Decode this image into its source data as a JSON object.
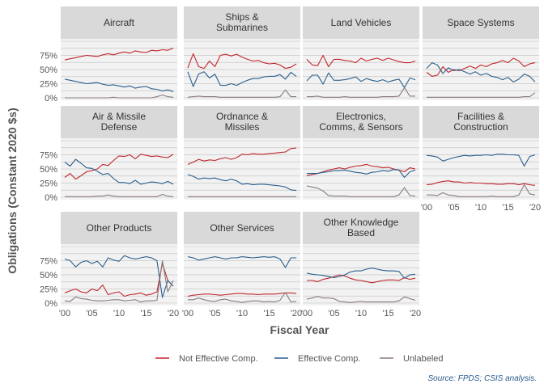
{
  "chart_data": {
    "type": "line",
    "facet_layout": "wrap",
    "ylabel": "Obligations (Constant 2020 $s)",
    "xlabel": "Fiscal Year",
    "source": "Source: FPDS; CSIS analysis.",
    "xlim": [
      2000,
      2020
    ],
    "ylim": [
      0,
      1
    ],
    "y_ticks": [
      0,
      0.25,
      0.5,
      0.75
    ],
    "y_tick_labels": [
      "0%",
      "25%",
      "50%",
      "75%"
    ],
    "x_ticks": [
      2000,
      2005,
      2010,
      2015,
      2020
    ],
    "x_tick_labels": [
      "'00",
      "'05",
      "'10",
      "'15",
      "'20"
    ],
    "grid": true,
    "legend_position": "bottom",
    "series_colors": {
      "Not Effective Comp.": "#c0272d",
      "Effective Comp.": "#2b5f8e",
      "Unlabeled": "#8a7c80"
    },
    "legend": [
      "Not Effective Comp.",
      "Effective Comp.",
      "Unlabeled"
    ],
    "years": [
      2000,
      2001,
      2002,
      2003,
      2004,
      2005,
      2006,
      2007,
      2008,
      2009,
      2010,
      2011,
      2012,
      2013,
      2014,
      2015,
      2016,
      2017,
      2018,
      2019,
      2020
    ],
    "facets": [
      {
        "title": [
          "Aircraft"
        ],
        "series": [
          {
            "name": "Not Effective Comp.",
            "values": [
              0.67,
              0.69,
              0.71,
              0.73,
              0.75,
              0.74,
              0.73,
              0.76,
              0.78,
              0.76,
              0.79,
              0.81,
              0.79,
              0.83,
              0.81,
              0.8,
              0.84,
              0.83,
              0.85,
              0.84,
              0.88
            ]
          },
          {
            "name": "Effective Comp.",
            "values": [
              0.33,
              0.31,
              0.29,
              0.27,
              0.25,
              0.26,
              0.27,
              0.24,
              0.22,
              0.23,
              0.21,
              0.19,
              0.21,
              0.17,
              0.19,
              0.2,
              0.16,
              0.15,
              0.12,
              0.14,
              0.11
            ]
          },
          {
            "name": "Unlabeled",
            "values": [
              0.0,
              0.0,
              0.0,
              0.0,
              0.0,
              0.0,
              0.0,
              0.0,
              0.0,
              0.01,
              0.0,
              0.0,
              0.0,
              0.0,
              0.0,
              0.0,
              0.0,
              0.02,
              0.05,
              0.02,
              0.01
            ]
          }
        ]
      },
      {
        "title": [
          "Ships &",
          "Submarines"
        ],
        "series": [
          {
            "name": "Not Effective Comp.",
            "values": [
              0.53,
              0.78,
              0.55,
              0.52,
              0.65,
              0.55,
              0.75,
              0.77,
              0.74,
              0.77,
              0.72,
              0.68,
              0.65,
              0.66,
              0.62,
              0.6,
              0.61,
              0.58,
              0.52,
              0.54,
              0.6
            ]
          },
          {
            "name": "Effective Comp.",
            "values": [
              0.46,
              0.2,
              0.42,
              0.46,
              0.35,
              0.42,
              0.22,
              0.22,
              0.25,
              0.22,
              0.27,
              0.31,
              0.34,
              0.34,
              0.37,
              0.38,
              0.38,
              0.41,
              0.33,
              0.45,
              0.38
            ]
          },
          {
            "name": "Unlabeled",
            "values": [
              0.01,
              0.02,
              0.03,
              0.02,
              0.02,
              0.02,
              0.01,
              0.01,
              0.01,
              0.01,
              0.01,
              0.01,
              0.01,
              0.01,
              0.01,
              0.01,
              0.01,
              0.02,
              0.14,
              0.02,
              0.02
            ]
          }
        ]
      },
      {
        "title": [
          "Land Vehicles"
        ],
        "series": [
          {
            "name": "Not Effective Comp.",
            "values": [
              0.68,
              0.58,
              0.57,
              0.75,
              0.55,
              0.68,
              0.68,
              0.66,
              0.65,
              0.62,
              0.7,
              0.65,
              0.68,
              0.7,
              0.66,
              0.7,
              0.67,
              0.64,
              0.62,
              0.62,
              0.65
            ]
          },
          {
            "name": "Effective Comp.",
            "values": [
              0.3,
              0.4,
              0.4,
              0.24,
              0.44,
              0.31,
              0.31,
              0.32,
              0.34,
              0.37,
              0.29,
              0.34,
              0.31,
              0.29,
              0.32,
              0.28,
              0.31,
              0.33,
              0.18,
              0.35,
              0.32
            ]
          },
          {
            "name": "Unlabeled",
            "values": [
              0.02,
              0.02,
              0.03,
              0.01,
              0.01,
              0.01,
              0.01,
              0.02,
              0.01,
              0.01,
              0.01,
              0.01,
              0.01,
              0.01,
              0.02,
              0.02,
              0.02,
              0.03,
              0.18,
              0.03,
              0.03
            ]
          }
        ]
      },
      {
        "title": [
          "Space Systems"
        ],
        "series": [
          {
            "name": "Not Effective Comp.",
            "values": [
              0.45,
              0.38,
              0.4,
              0.55,
              0.45,
              0.5,
              0.48,
              0.52,
              0.56,
              0.52,
              0.58,
              0.55,
              0.6,
              0.62,
              0.66,
              0.62,
              0.7,
              0.65,
              0.55,
              0.6,
              0.62
            ]
          },
          {
            "name": "Effective Comp.",
            "values": [
              0.52,
              0.62,
              0.58,
              0.43,
              0.53,
              0.48,
              0.5,
              0.46,
              0.42,
              0.46,
              0.4,
              0.43,
              0.38,
              0.36,
              0.32,
              0.36,
              0.28,
              0.33,
              0.42,
              0.38,
              0.28
            ]
          },
          {
            "name": "Unlabeled",
            "values": [
              0.01,
              0.01,
              0.01,
              0.01,
              0.01,
              0.01,
              0.01,
              0.01,
              0.01,
              0.01,
              0.01,
              0.01,
              0.01,
              0.01,
              0.01,
              0.01,
              0.01,
              0.01,
              0.02,
              0.02,
              0.09
            ]
          }
        ]
      },
      {
        "title": [
          "Air & Missile",
          "Defense"
        ],
        "series": [
          {
            "name": "Not Effective Comp.",
            "values": [
              0.35,
              0.42,
              0.32,
              0.38,
              0.45,
              0.47,
              0.5,
              0.58,
              0.56,
              0.65,
              0.73,
              0.72,
              0.75,
              0.68,
              0.76,
              0.74,
              0.72,
              0.73,
              0.71,
              0.7,
              0.76
            ]
          },
          {
            "name": "Effective Comp.",
            "values": [
              0.62,
              0.55,
              0.67,
              0.6,
              0.52,
              0.51,
              0.46,
              0.4,
              0.42,
              0.33,
              0.26,
              0.26,
              0.24,
              0.3,
              0.23,
              0.25,
              0.27,
              0.26,
              0.24,
              0.28,
              0.23
            ]
          },
          {
            "name": "Unlabeled",
            "values": [
              0.01,
              0.01,
              0.01,
              0.01,
              0.01,
              0.01,
              0.02,
              0.02,
              0.04,
              0.02,
              0.01,
              0.01,
              0.01,
              0.01,
              0.01,
              0.01,
              0.01,
              0.01,
              0.05,
              0.02,
              0.01
            ]
          }
        ]
      },
      {
        "title": [
          "Ordnance &",
          "Missiles"
        ],
        "series": [
          {
            "name": "Not Effective Comp.",
            "values": [
              0.58,
              0.62,
              0.67,
              0.64,
              0.66,
              0.65,
              0.68,
              0.7,
              0.67,
              0.7,
              0.76,
              0.75,
              0.77,
              0.76,
              0.76,
              0.77,
              0.78,
              0.79,
              0.8,
              0.86,
              0.87
            ]
          },
          {
            "name": "Effective Comp.",
            "values": [
              0.4,
              0.37,
              0.32,
              0.34,
              0.33,
              0.34,
              0.31,
              0.29,
              0.32,
              0.29,
              0.23,
              0.24,
              0.22,
              0.23,
              0.23,
              0.22,
              0.21,
              0.2,
              0.18,
              0.13,
              0.12
            ]
          },
          {
            "name": "Unlabeled",
            "values": [
              0.01,
              0.01,
              0.01,
              0.01,
              0.01,
              0.01,
              0.01,
              0.01,
              0.01,
              0.01,
              0.01,
              0.01,
              0.01,
              0.01,
              0.01,
              0.01,
              0.01,
              0.01,
              0.01,
              0.01,
              0.01
            ]
          }
        ]
      },
      {
        "title": [
          "Electronics,",
          "Comms, & Sensors"
        ],
        "series": [
          {
            "name": "Not Effective Comp.",
            "values": [
              0.38,
              0.4,
              0.42,
              0.45,
              0.48,
              0.5,
              0.52,
              0.5,
              0.53,
              0.55,
              0.56,
              0.58,
              0.55,
              0.54,
              0.52,
              0.53,
              0.5,
              0.48,
              0.45,
              0.52,
              0.5
            ]
          },
          {
            "name": "Effective Comp.",
            "values": [
              0.42,
              0.42,
              0.42,
              0.44,
              0.45,
              0.47,
              0.47,
              0.48,
              0.46,
              0.44,
              0.43,
              0.41,
              0.44,
              0.45,
              0.47,
              0.46,
              0.49,
              0.48,
              0.35,
              0.45,
              0.48
            ]
          },
          {
            "name": "Unlabeled",
            "values": [
              0.2,
              0.18,
              0.16,
              0.11,
              0.03,
              0.02,
              0.02,
              0.02,
              0.01,
              0.01,
              0.01,
              0.01,
              0.01,
              0.01,
              0.01,
              0.01,
              0.01,
              0.04,
              0.17,
              0.03,
              0.02
            ]
          }
        ]
      },
      {
        "title": [
          "Facilities &",
          "Construction"
        ],
        "series": [
          {
            "name": "Not Effective Comp.",
            "values": [
              0.22,
              0.23,
              0.26,
              0.28,
              0.29,
              0.27,
              0.27,
              0.25,
              0.26,
              0.25,
              0.25,
              0.24,
              0.24,
              0.23,
              0.23,
              0.24,
              0.24,
              0.22,
              0.24,
              0.22,
              0.21
            ]
          },
          {
            "name": "Effective Comp.",
            "values": [
              0.74,
              0.73,
              0.71,
              0.64,
              0.67,
              0.7,
              0.72,
              0.74,
              0.73,
              0.74,
              0.74,
              0.75,
              0.74,
              0.76,
              0.76,
              0.75,
              0.75,
              0.74,
              0.55,
              0.72,
              0.75
            ]
          },
          {
            "name": "Unlabeled",
            "values": [
              0.04,
              0.04,
              0.03,
              0.08,
              0.04,
              0.03,
              0.01,
              0.01,
              0.01,
              0.01,
              0.01,
              0.01,
              0.02,
              0.01,
              0.01,
              0.01,
              0.01,
              0.04,
              0.22,
              0.06,
              0.04
            ]
          }
        ]
      },
      {
        "title": [
          "Other Products"
        ],
        "series": [
          {
            "name": "Not Effective Comp.",
            "values": [
              0.18,
              0.22,
              0.25,
              0.2,
              0.18,
              0.25,
              0.22,
              0.32,
              0.15,
              0.18,
              0.2,
              0.12,
              0.15,
              0.16,
              0.18,
              0.14,
              0.16,
              0.2,
              0.7,
              0.4,
              0.3
            ]
          },
          {
            "name": "Effective Comp.",
            "values": [
              0.78,
              0.75,
              0.64,
              0.72,
              0.75,
              0.7,
              0.74,
              0.64,
              0.8,
              0.76,
              0.74,
              0.84,
              0.8,
              0.78,
              0.8,
              0.82,
              0.8,
              0.75,
              0.1,
              0.4,
              0.3
            ]
          },
          {
            "name": "Unlabeled",
            "values": [
              0.04,
              0.03,
              0.11,
              0.08,
              0.07,
              0.05,
              0.04,
              0.04,
              0.05,
              0.06,
              0.06,
              0.04,
              0.05,
              0.06,
              0.02,
              0.04,
              0.04,
              0.05,
              0.75,
              0.2,
              0.4
            ]
          }
        ]
      },
      {
        "title": [
          "Other Services"
        ],
        "series": [
          {
            "name": "Not Effective Comp.",
            "values": [
              0.12,
              0.14,
              0.15,
              0.16,
              0.16,
              0.15,
              0.14,
              0.15,
              0.16,
              0.17,
              0.17,
              0.16,
              0.16,
              0.15,
              0.16,
              0.16,
              0.16,
              0.17,
              0.18,
              0.18,
              0.17
            ]
          },
          {
            "name": "Effective Comp.",
            "values": [
              0.82,
              0.8,
              0.76,
              0.78,
              0.8,
              0.82,
              0.8,
              0.78,
              0.8,
              0.8,
              0.82,
              0.81,
              0.8,
              0.81,
              0.82,
              0.81,
              0.82,
              0.78,
              0.63,
              0.8,
              0.8
            ]
          },
          {
            "name": "Unlabeled",
            "values": [
              0.06,
              0.06,
              0.09,
              0.06,
              0.04,
              0.03,
              0.06,
              0.07,
              0.04,
              0.03,
              0.01,
              0.03,
              0.04,
              0.04,
              0.02,
              0.03,
              0.02,
              0.05,
              0.19,
              0.02,
              0.03
            ]
          }
        ]
      },
      {
        "title": [
          "Other Knowledge",
          "Based"
        ],
        "series": [
          {
            "name": "Not Effective Comp.",
            "values": [
              0.4,
              0.4,
              0.38,
              0.42,
              0.44,
              0.47,
              0.5,
              0.48,
              0.44,
              0.41,
              0.4,
              0.38,
              0.36,
              0.38,
              0.4,
              0.41,
              0.41,
              0.4,
              0.45,
              0.42,
              0.44
            ]
          },
          {
            "name": "Effective Comp.",
            "values": [
              0.53,
              0.51,
              0.5,
              0.49,
              0.47,
              0.45,
              0.47,
              0.5,
              0.55,
              0.57,
              0.57,
              0.6,
              0.62,
              0.6,
              0.58,
              0.57,
              0.57,
              0.56,
              0.44,
              0.5,
              0.51
            ]
          },
          {
            "name": "Unlabeled",
            "values": [
              0.07,
              0.09,
              0.12,
              0.09,
              0.09,
              0.08,
              0.03,
              0.02,
              0.01,
              0.02,
              0.03,
              0.02,
              0.02,
              0.02,
              0.02,
              0.02,
              0.02,
              0.04,
              0.11,
              0.08,
              0.05
            ]
          }
        ]
      }
    ]
  }
}
